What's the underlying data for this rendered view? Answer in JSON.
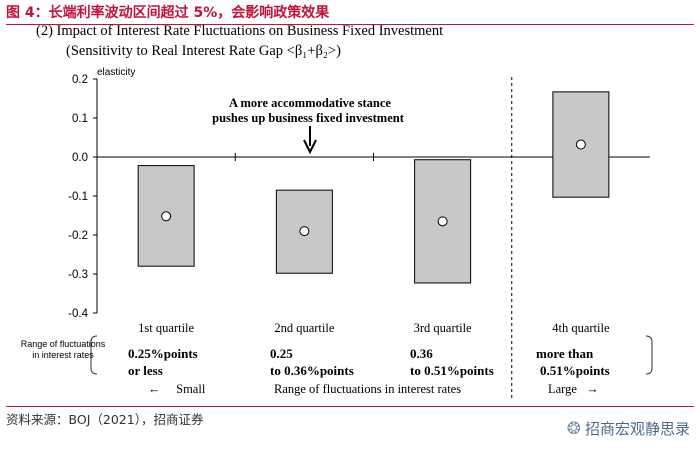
{
  "figure_title": "图 4：长端利率波动区间超过 5%，会影响政策效果",
  "panel_title": "(2) Impact of Interest Rate Fluctuations on Business Fixed Investment",
  "panel_subtitle": "(Sensitivity to Real Interest Rate Gap <β₁+β₂>)",
  "source": "资料来源：BOJ（2021），招商证券",
  "brand": "招商宏观静思录",
  "icons": {
    "brand_logo": "wechat-icon"
  },
  "chart_data": {
    "type": "box",
    "ylabel": "elasticity",
    "ylim": [
      -0.4,
      0.2
    ],
    "yticks": [
      0.2,
      0.1,
      0.0,
      -0.1,
      -0.2,
      -0.3,
      -0.4
    ],
    "ytick_labels": [
      "0.2",
      "0.1",
      "0.0",
      "-0.1",
      "-0.2",
      "-0.3",
      "-0.4"
    ],
    "categories": [
      "1st quartile",
      "2nd quartile",
      "3rd quartile",
      "4th quartile"
    ],
    "boxes": [
      {
        "low": -0.28,
        "high": -0.022,
        "point": -0.152
      },
      {
        "low": -0.298,
        "high": -0.085,
        "point": -0.19
      },
      {
        "low": -0.323,
        "high": -0.007,
        "point": -0.165
      },
      {
        "low": -0.103,
        "high": 0.167,
        "point": 0.032
      }
    ],
    "annotation_line1": "A more accommodative stance",
    "annotation_line2": "pushes up business fixed investment",
    "box_fill": "#c8c8c8",
    "divider_after_category": 3
  },
  "range_row": {
    "label": "Range of fluctuations in interest rates",
    "values": [
      {
        "line1": "0.25%points",
        "line2": "or less"
      },
      {
        "line1": "0.25",
        "line2": "to 0.36%points"
      },
      {
        "line1": "0.36",
        "line2": "to 0.51%points"
      },
      {
        "line1": "more than",
        "line2": "0.51%points"
      }
    ]
  },
  "bottom_axis": {
    "left": "←     Small",
    "center": "Range of fluctuations in interest rates",
    "right": "Large   →"
  }
}
